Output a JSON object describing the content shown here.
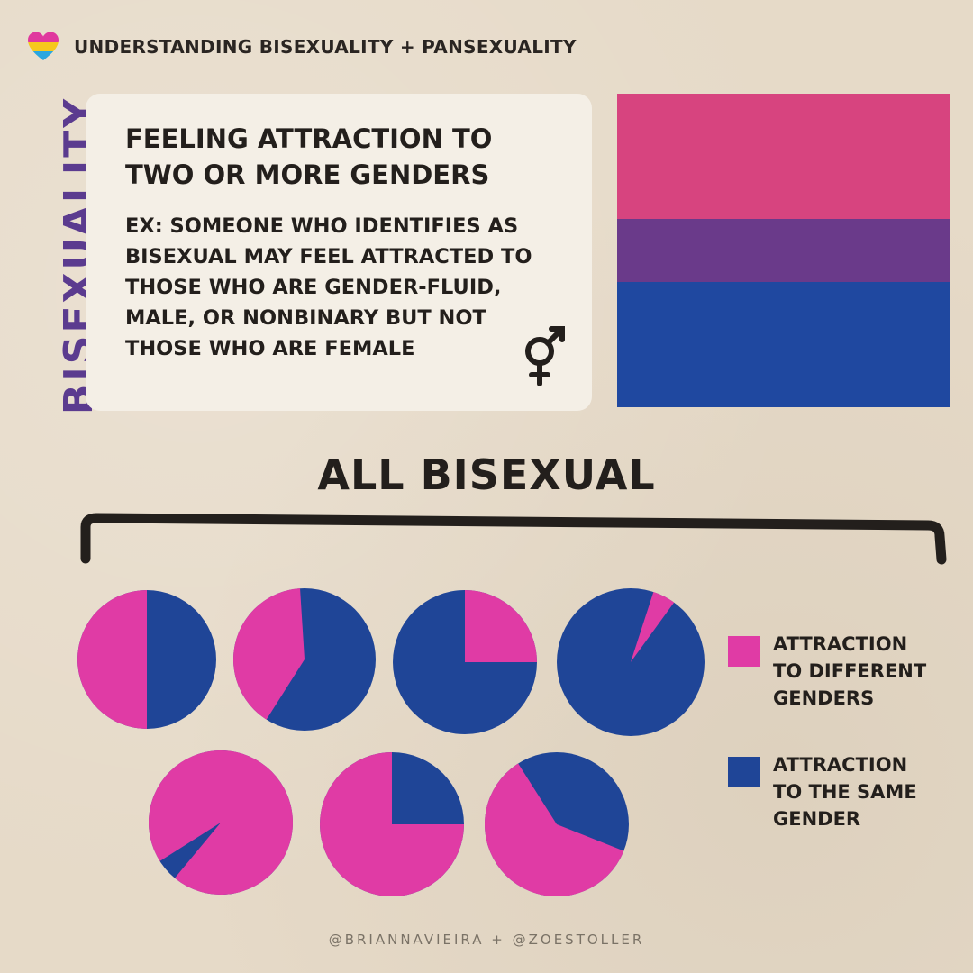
{
  "header": {
    "title": "UNDERSTANDING BISEXUALITY + PANSEXUALITY",
    "icon": "heart-icon"
  },
  "definition": {
    "vertical_title": "BISEXUALITY",
    "heading_line1": "FEELING ATTRACTION TO",
    "heading_line2": "TWO OR MORE GENDERS",
    "example_line1": "EX: SOMEONE WHO IDENTIFIES AS",
    "example_line2": "BISEXUAL MAY FEEL ATTRACTED TO",
    "example_line3": "THOSE WHO ARE GENDER-FLUID,",
    "example_line4": "MALE, OR NONBINARY BUT NOT",
    "example_line5": "THOSE WHO ARE FEMALE",
    "symbol_icon": "transgender-symbol-icon"
  },
  "flag": {
    "name": "bisexual-pride-flag",
    "stripes": [
      {
        "color": "#d7447f",
        "weight": 2
      },
      {
        "color": "#6a3a8a",
        "weight": 1
      },
      {
        "color": "#1f48a0",
        "weight": 2
      }
    ]
  },
  "colors": {
    "pink": "#e03ba5",
    "blue": "#1f4597",
    "purple": "#5b3b8f",
    "background": "#e6dac8",
    "card": "#f4efe6"
  },
  "chart_data": {
    "type": "pie",
    "title": "ALL BISEXUAL",
    "series": [
      {
        "name": "ATTRACTION TO DIFFERENT GENDERS",
        "color": "#e03ba5"
      },
      {
        "name": "ATTRACTION TO THE SAME GENDER",
        "color": "#1f4597"
      }
    ],
    "pies": [
      {
        "different_genders": 50,
        "same_gender": 50
      },
      {
        "different_genders": 40,
        "same_gender": 60
      },
      {
        "different_genders": 25,
        "same_gender": 75
      },
      {
        "different_genders": 5,
        "same_gender": 95
      },
      {
        "different_genders": 95,
        "same_gender": 5
      },
      {
        "different_genders": 75,
        "same_gender": 25
      },
      {
        "different_genders": 60,
        "same_gender": 40
      }
    ],
    "legend": {
      "different_line1": "ATTRACTION",
      "different_line2": "TO DIFFERENT",
      "different_line3": "GENDERS",
      "same_line1": "ATTRACTION",
      "same_line2": "TO THE SAME",
      "same_line3": "GENDER"
    },
    "legend_position": "right"
  },
  "footer": {
    "credit": "@BRIANNAVIEIRA + @ZOESTOLLER"
  }
}
